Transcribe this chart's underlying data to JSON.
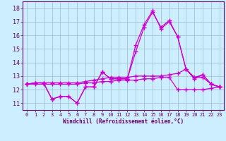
{
  "xlabel": "Windchill (Refroidissement éolien,°C)",
  "background_color": "#cceeff",
  "line_color": "#cc00cc",
  "grid_color": "#99bbcc",
  "text_color": "#660066",
  "hours": [
    0,
    1,
    2,
    3,
    4,
    5,
    6,
    7,
    8,
    9,
    10,
    11,
    12,
    13,
    14,
    15,
    16,
    17,
    18,
    19,
    20,
    21,
    22,
    23
  ],
  "series1": [
    12.4,
    12.5,
    12.5,
    11.3,
    11.5,
    11.5,
    11.0,
    12.2,
    12.2,
    13.3,
    12.8,
    12.8,
    12.8,
    14.8,
    16.6,
    17.7,
    16.6,
    17.1,
    15.9,
    13.5,
    12.9,
    13.1,
    12.4,
    12.2
  ],
  "series2": [
    12.4,
    12.5,
    12.5,
    11.3,
    11.5,
    11.5,
    11.0,
    12.2,
    12.2,
    13.3,
    12.8,
    12.8,
    12.8,
    15.3,
    16.8,
    17.8,
    16.5,
    17.0,
    15.9,
    13.5,
    12.8,
    13.1,
    12.4,
    12.2
  ],
  "series3": [
    12.4,
    12.5,
    12.5,
    12.5,
    12.5,
    12.5,
    12.5,
    12.6,
    12.7,
    12.8,
    12.9,
    12.9,
    12.9,
    13.0,
    13.0,
    13.0,
    13.0,
    13.1,
    13.2,
    13.5,
    12.9,
    12.9,
    12.4,
    12.2
  ],
  "series4": [
    12.4,
    12.4,
    12.4,
    12.4,
    12.4,
    12.4,
    12.4,
    12.5,
    12.5,
    12.6,
    12.6,
    12.7,
    12.7,
    12.7,
    12.8,
    12.8,
    12.9,
    12.9,
    12.0,
    12.0,
    12.0,
    12.0,
    12.1,
    12.2
  ],
  "ylim": [
    10.5,
    18.5
  ],
  "yticks": [
    11,
    12,
    13,
    14,
    15,
    16,
    17,
    18
  ],
  "xlim": [
    -0.5,
    23.5
  ],
  "figsize": [
    3.2,
    2.0
  ],
  "dpi": 100
}
